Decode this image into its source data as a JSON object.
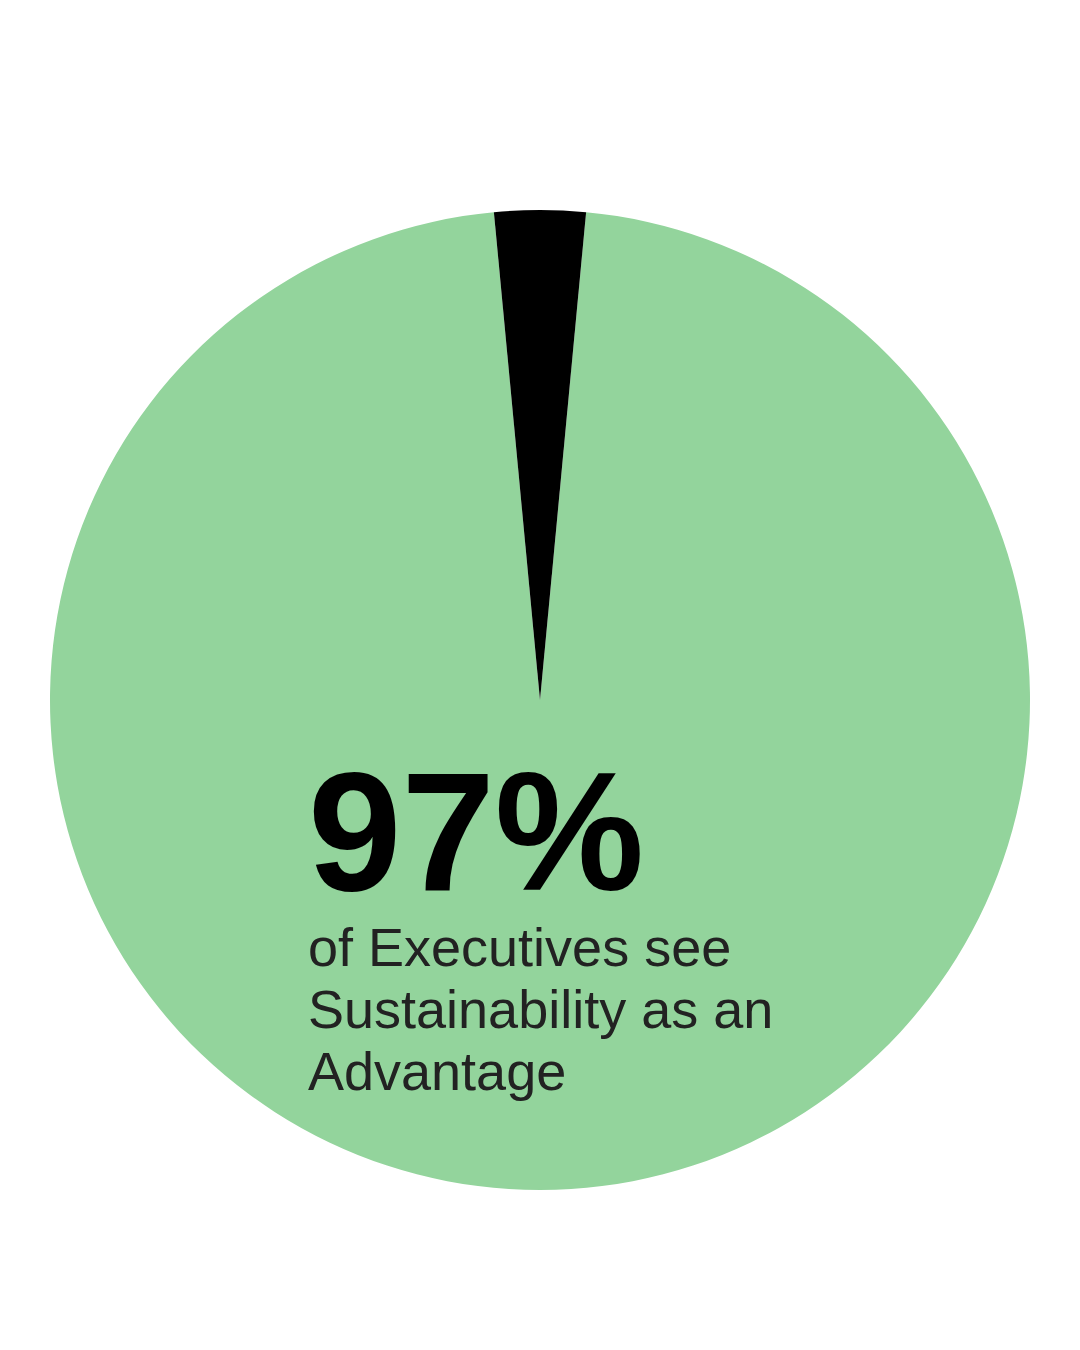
{
  "chart_data": {
    "type": "pie",
    "categories": [
      "of Executives see Sustainability as an Advantage",
      null
    ],
    "values": [
      97,
      3
    ],
    "value_labels": [
      "97%",
      null
    ],
    "colors": [
      "#93d49c",
      "#000000"
    ]
  }
}
